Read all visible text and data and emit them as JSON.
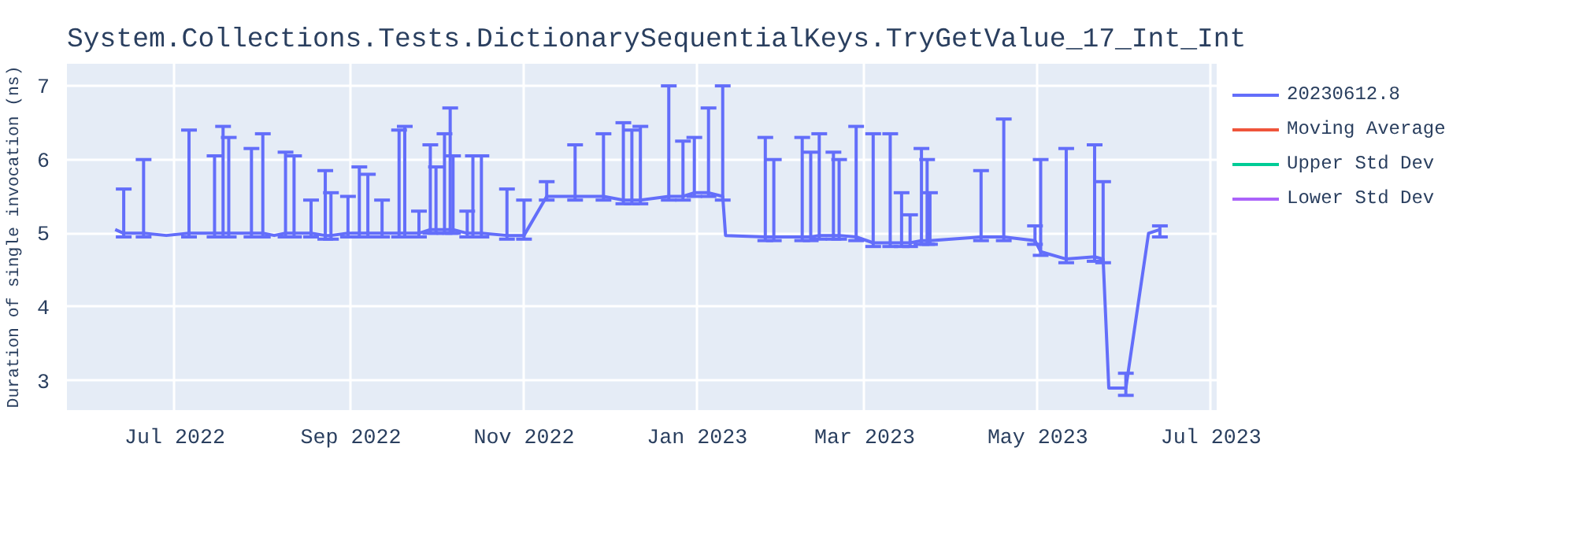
{
  "chart_data": {
    "type": "line",
    "title": "System.Collections.Tests.DictionarySequentialKeys.TryGetValue_17_Int_Int",
    "ylabel": "Duration of single invocation (ns)",
    "xlim": [
      "2022-05-24",
      "2023-07-03"
    ],
    "ylim": [
      2.6,
      7.3
    ],
    "yticks": [
      3,
      4,
      5,
      6,
      7
    ],
    "xticks": [
      {
        "value": "2022-07-01",
        "label": "Jul 2022"
      },
      {
        "value": "2022-09-01",
        "label": "Sep 2022"
      },
      {
        "value": "2022-11-01",
        "label": "Nov 2022"
      },
      {
        "value": "2023-01-01",
        "label": "Jan 2023"
      },
      {
        "value": "2023-03-01",
        "label": "Mar 2023"
      },
      {
        "value": "2023-05-01",
        "label": "May 2023"
      },
      {
        "value": "2023-07-01",
        "label": "Jul 2023"
      }
    ],
    "grid": true,
    "legend": "right",
    "marker": "none",
    "line_style": "solid",
    "series": [
      {
        "name": "20230612.8",
        "color": "#636efa",
        "x": [
          "2022-06-10",
          "2022-06-13",
          "2022-06-20",
          "2022-06-28",
          "2022-07-06",
          "2022-07-15",
          "2022-07-18",
          "2022-07-20",
          "2022-07-25",
          "2022-07-28",
          "2022-08-01",
          "2022-08-05",
          "2022-08-09",
          "2022-08-12",
          "2022-08-18",
          "2022-08-23",
          "2022-08-25",
          "2022-08-31",
          "2022-09-04",
          "2022-09-07",
          "2022-09-12",
          "2022-09-18",
          "2022-09-20",
          "2022-09-25",
          "2022-09-29",
          "2022-10-01",
          "2022-10-04",
          "2022-10-06",
          "2022-10-07",
          "2022-10-12",
          "2022-10-14",
          "2022-10-17",
          "2022-10-26",
          "2022-11-01",
          "2022-11-09",
          "2022-11-19",
          "2022-11-29",
          "2022-12-06",
          "2022-12-09",
          "2022-12-12",
          "2022-12-22",
          "2022-12-27",
          "2022-12-31",
          "2023-01-05",
          "2023-01-10",
          "2023-01-11",
          "2023-01-25",
          "2023-01-28",
          "2023-02-07",
          "2023-02-10",
          "2023-02-13",
          "2023-02-18",
          "2023-02-20",
          "2023-02-26",
          "2023-03-04",
          "2023-03-10",
          "2023-03-14",
          "2023-03-17",
          "2023-03-21",
          "2023-03-23",
          "2023-03-24",
          "2023-04-11",
          "2023-04-19",
          "2023-04-30",
          "2023-05-02",
          "2023-05-11",
          "2023-05-21",
          "2023-05-24",
          "2023-05-26",
          "2023-06-01",
          "2023-06-09",
          "2023-06-13"
        ],
        "values": [
          5.05,
          5.0,
          5.0,
          4.97,
          5.0,
          5.0,
          5.0,
          5.0,
          5.0,
          5.0,
          5.0,
          4.97,
          5.0,
          5.0,
          5.0,
          4.97,
          4.97,
          5.0,
          5.0,
          5.0,
          5.0,
          5.0,
          5.0,
          5.0,
          5.05,
          5.05,
          5.05,
          5.05,
          5.05,
          5.0,
          5.0,
          5.0,
          4.97,
          4.97,
          5.5,
          5.5,
          5.5,
          5.45,
          5.45,
          5.45,
          5.5,
          5.5,
          5.55,
          5.55,
          5.5,
          4.97,
          4.95,
          4.95,
          4.95,
          4.95,
          4.97,
          4.97,
          4.97,
          4.95,
          4.87,
          4.87,
          4.87,
          4.87,
          4.9,
          4.9,
          4.9,
          4.95,
          4.95,
          4.9,
          4.75,
          4.65,
          4.68,
          4.65,
          2.9,
          2.9,
          5.0,
          5.05
        ],
        "errors": [
          null,
          [
            4.95,
            5.6
          ],
          [
            4.95,
            6.0
          ],
          null,
          [
            4.95,
            6.4
          ],
          [
            4.95,
            6.05
          ],
          [
            4.95,
            6.45
          ],
          [
            4.95,
            6.3
          ],
          null,
          [
            4.95,
            6.15
          ],
          [
            4.95,
            6.35
          ],
          null,
          [
            4.95,
            6.1
          ],
          [
            4.95,
            6.05
          ],
          [
            4.95,
            5.45
          ],
          [
            4.92,
            5.85
          ],
          [
            4.92,
            5.55
          ],
          [
            4.95,
            5.5
          ],
          [
            4.95,
            5.9
          ],
          [
            4.95,
            5.8
          ],
          [
            4.95,
            5.45
          ],
          [
            4.95,
            6.4
          ],
          [
            4.95,
            6.45
          ],
          [
            4.95,
            5.3
          ],
          [
            5.0,
            6.2
          ],
          [
            5.0,
            5.9
          ],
          [
            5.0,
            6.35
          ],
          [
            5.0,
            6.7
          ],
          [
            5.0,
            6.05
          ],
          [
            4.95,
            5.3
          ],
          [
            4.95,
            6.05
          ],
          [
            4.95,
            6.05
          ],
          [
            4.92,
            5.6
          ],
          [
            4.92,
            5.45
          ],
          [
            5.45,
            5.7
          ],
          [
            5.45,
            6.2
          ],
          [
            5.45,
            6.35
          ],
          [
            5.4,
            6.5
          ],
          [
            5.4,
            6.4
          ],
          [
            5.4,
            6.45
          ],
          [
            5.45,
            7.0
          ],
          [
            5.45,
            6.25
          ],
          [
            5.5,
            6.3
          ],
          [
            5.5,
            6.7
          ],
          [
            5.45,
            7.0
          ],
          null,
          [
            4.9,
            6.3
          ],
          [
            4.9,
            6.0
          ],
          [
            4.9,
            6.3
          ],
          [
            4.9,
            6.1
          ],
          [
            4.92,
            6.35
          ],
          [
            4.92,
            6.1
          ],
          [
            4.92,
            6.0
          ],
          [
            4.9,
            6.45
          ],
          [
            4.82,
            6.35
          ],
          [
            4.82,
            6.35
          ],
          [
            4.82,
            5.55
          ],
          [
            4.82,
            5.25
          ],
          [
            4.85,
            6.15
          ],
          [
            4.85,
            6.0
          ],
          [
            4.85,
            5.55
          ],
          [
            4.9,
            5.85
          ],
          [
            4.9,
            6.55
          ],
          [
            4.85,
            5.1
          ],
          [
            4.7,
            6.0
          ],
          [
            4.6,
            6.15
          ],
          [
            4.62,
            6.2
          ],
          [
            4.6,
            5.7
          ],
          null,
          [
            2.8,
            3.1
          ],
          null,
          [
            4.95,
            5.1
          ]
        ]
      },
      {
        "name": "Moving Average",
        "color": "#ef553b"
      },
      {
        "name": "Upper Std Dev",
        "color": "#00cc96"
      },
      {
        "name": "Lower Std Dev",
        "color": "#ab63fa"
      }
    ]
  }
}
